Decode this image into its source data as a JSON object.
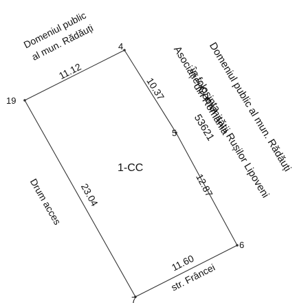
{
  "parcel": {
    "id": "1-CC"
  },
  "points": [
    {
      "name": "4"
    },
    {
      "name": "5"
    },
    {
      "name": "6"
    },
    {
      "name": "7"
    },
    {
      "name": "19"
    }
  ],
  "distances": {
    "p19_p4": "11.12",
    "p4_p5": "10.37",
    "p5_p6": "12.87",
    "p6_p7": "11.60",
    "p7_p19": "23.04"
  },
  "neighbors": {
    "north_line1": "Domeniul public",
    "north_line2": "al mun. Rădăuți",
    "east_line1": "Domeniul public al mun. Rădăuți",
    "east_line2": "în folosința",
    "east_line3": "Asociației Comunității Rușilor Lipoveni",
    "east_line4": "din România",
    "east_line5": "53621",
    "south": "str. Frâncei",
    "west": "Drum acces"
  }
}
